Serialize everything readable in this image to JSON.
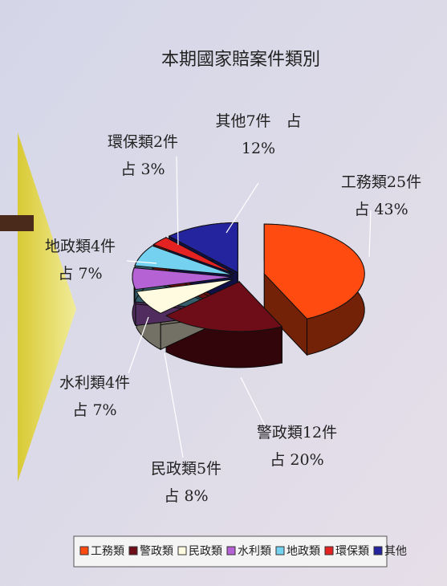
{
  "chart_data": {
    "type": "pie",
    "title": "本期國家賠案件類別",
    "categories": [
      "工務類",
      "警政類",
      "民政類",
      "水利類",
      "地政類",
      "環保類",
      "其他"
    ],
    "values": [
      43,
      20,
      8,
      7,
      7,
      3,
      12
    ],
    "value_labels": [
      [
        "工務類25件",
        "占 43%"
      ],
      [
        "警政類12件",
        "占 20%"
      ],
      [
        "民政類5件",
        "占 8%"
      ],
      [
        "水利類4件",
        "占 7%"
      ],
      [
        "地政類4件",
        "占 7%"
      ],
      [
        "環保類2件",
        "占 3%"
      ],
      [
        "其他7件　占",
        "12%"
      ]
    ],
    "colors": [
      "#ff4a10",
      "#6e0c18",
      "#fffbe0",
      "#b462d4",
      "#74d2f0",
      "#e42222",
      "#24249e"
    ],
    "legend": "bottom"
  }
}
